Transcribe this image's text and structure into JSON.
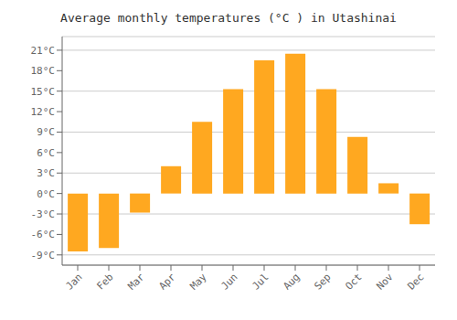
{
  "chart_data": {
    "type": "bar",
    "title": "Average monthly temperatures (°C ) in Utashinai",
    "categories": [
      "Jan",
      "Feb",
      "Mar",
      "Apr",
      "May",
      "Jun",
      "Jul",
      "Aug",
      "Sep",
      "Oct",
      "Nov",
      "Dec"
    ],
    "values": [
      -8.5,
      -8.0,
      -2.8,
      4.0,
      10.5,
      15.3,
      19.5,
      20.5,
      15.3,
      8.3,
      1.5,
      -4.5
    ],
    "color": "#FFA820",
    "ylim": [
      -10.5,
      23
    ],
    "yticks": [
      {
        "value": -9,
        "label": "-9°C"
      },
      {
        "value": -6,
        "label": "-6°C"
      },
      {
        "value": -3,
        "label": "-3°C"
      },
      {
        "value": 0,
        "label": "0°C"
      },
      {
        "value": 3,
        "label": "3°C"
      },
      {
        "value": 6,
        "label": "6°C"
      },
      {
        "value": 9,
        "label": "9°C"
      },
      {
        "value": 12,
        "label": "12°C"
      },
      {
        "value": 15,
        "label": "15°C"
      },
      {
        "value": 18,
        "label": "18°C"
      },
      {
        "value": 21,
        "label": "21°C"
      }
    ],
    "grid": true
  }
}
